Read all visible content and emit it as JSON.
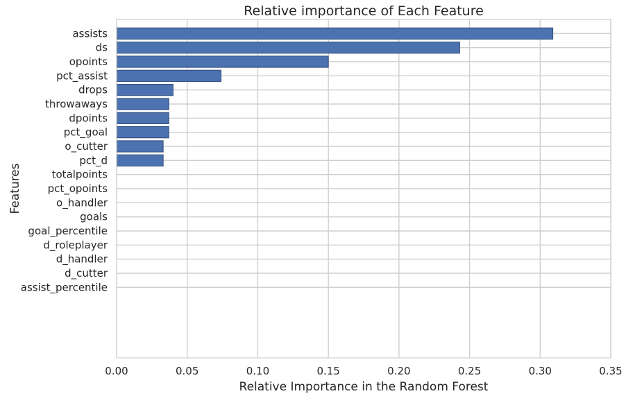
{
  "chart_data": {
    "type": "bar",
    "orientation": "horizontal",
    "title": "Relative importance of Each Feature",
    "xlabel": "Relative Importance in the Random Forest",
    "ylabel": "Features",
    "xlim": [
      0,
      0.35
    ],
    "xticks": [
      "0.00",
      "0.05",
      "0.10",
      "0.15",
      "0.20",
      "0.25",
      "0.30",
      "0.35"
    ],
    "ylim": [
      -5,
      19
    ],
    "grid": true,
    "bar_color": "#4c72b0",
    "categories": [
      "assists",
      "ds",
      "opoints",
      "pct_assist",
      "drops",
      "throwaways",
      "dpoints",
      "pct_goal",
      "o_cutter",
      "pct_d",
      "totalpoints",
      "pct_opoints",
      "o_handler",
      "goals",
      "goal_percentile",
      "d_roleplayer",
      "d_handler",
      "d_cutter",
      "assist_percentile"
    ],
    "values": [
      0.309,
      0.243,
      0.15,
      0.074,
      0.04,
      0.037,
      0.037,
      0.037,
      0.033,
      0.033,
      0,
      0,
      0,
      0,
      0,
      0,
      0,
      0,
      0
    ]
  }
}
